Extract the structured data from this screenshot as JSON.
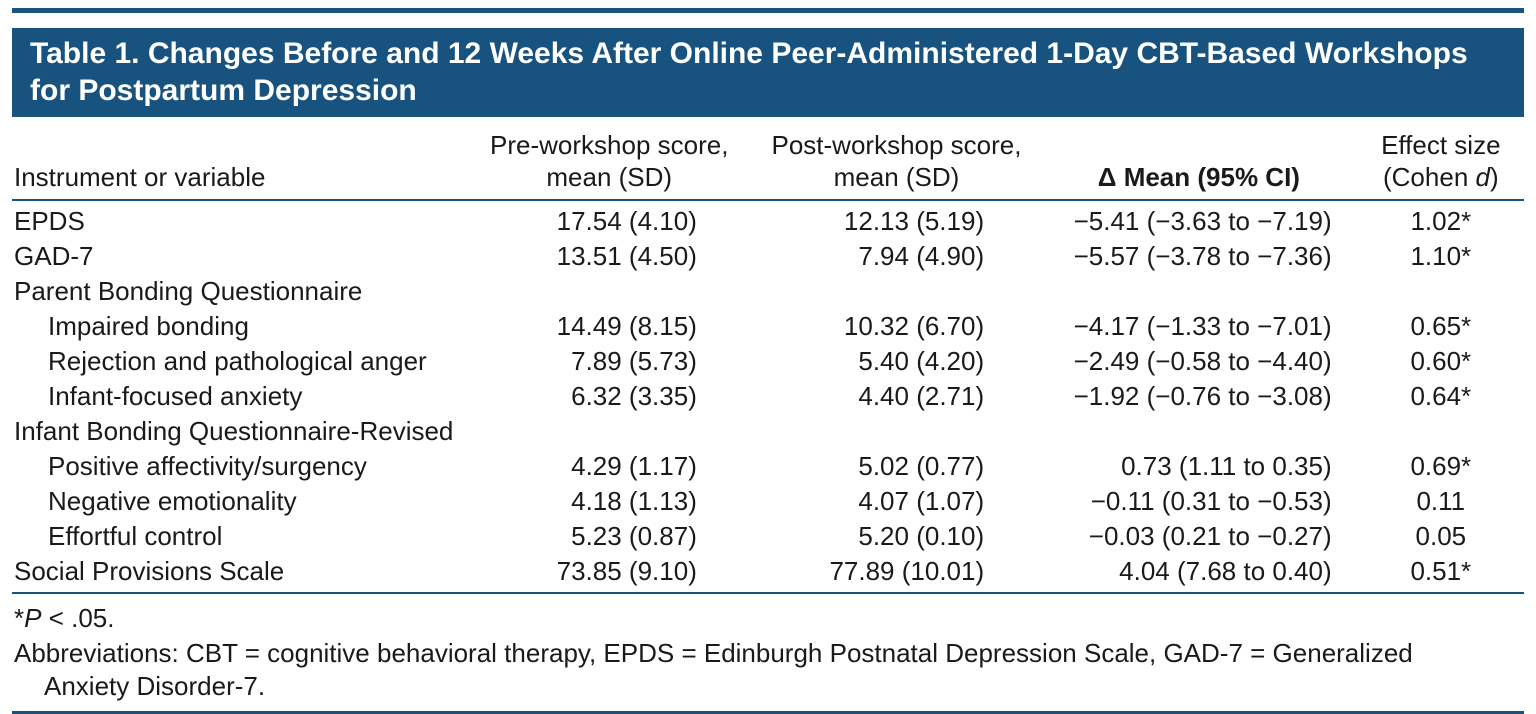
{
  "colors": {
    "accent": "#17537E",
    "text": "#1A1A1A",
    "title_text": "#FFFFFF"
  },
  "table": {
    "title_line1": "Table 1. Changes Before and 12 Weeks After Online Peer-Administered 1-Day CBT-Based Workshops",
    "title_line2": "for Postpartum Depression",
    "columns": {
      "instrument": "Instrument or variable",
      "pre_line1": "Pre-workshop score,",
      "pre_line2": "mean (SD)",
      "post_line1": "Post-workshop score,",
      "post_line2": "mean (SD)",
      "delta": "Δ Mean (95% CI)",
      "effect_line1": "Effect size",
      "effect_line2_pre": "(Cohen ",
      "effect_line2_d": "d",
      "effect_line2_post": ")"
    },
    "rows": [
      {
        "label": "EPDS",
        "indent": false,
        "group": false,
        "pre": "17.54 (4.10)",
        "post": "12.13 (5.19)",
        "delta": "−5.41 (−3.63 to −7.19)",
        "effect": "1.02*"
      },
      {
        "label": "GAD-7",
        "indent": false,
        "group": false,
        "pre": "13.51 (4.50)",
        "post": "7.94 (4.90)",
        "delta": "−5.57 (−3.78 to −7.36)",
        "effect": "1.10*"
      },
      {
        "label": "Parent Bonding Questionnaire",
        "indent": false,
        "group": true,
        "pre": "",
        "post": "",
        "delta": "",
        "effect": ""
      },
      {
        "label": "Impaired bonding",
        "indent": true,
        "group": false,
        "pre": "14.49 (8.15)",
        "post": "10.32 (6.70)",
        "delta": "−4.17 (−1.33 to −7.01)",
        "effect": "0.65*"
      },
      {
        "label": "Rejection and pathological anger",
        "indent": true,
        "group": false,
        "pre": "7.89 (5.73)",
        "post": "5.40 (4.20)",
        "delta": "−2.49 (−0.58 to −4.40)",
        "effect": "0.60*"
      },
      {
        "label": "Infant-focused anxiety",
        "indent": true,
        "group": false,
        "pre": "6.32 (3.35)",
        "post": "4.40 (2.71)",
        "delta": "−1.92 (−0.76 to −3.08)",
        "effect": "0.64*"
      },
      {
        "label": "Infant Bonding Questionnaire-Revised",
        "indent": false,
        "group": true,
        "pre": "",
        "post": "",
        "delta": "",
        "effect": ""
      },
      {
        "label": "Positive affectivity/surgency",
        "indent": true,
        "group": false,
        "pre": "4.29 (1.17)",
        "post": "5.02 (0.77)",
        "delta": "0.73 (1.11 to 0.35)",
        "effect": "0.69*"
      },
      {
        "label": "Negative emotionality",
        "indent": true,
        "group": false,
        "pre": "4.18 (1.13)",
        "post": "4.07 (1.07)",
        "delta": "−0.11 (0.31 to −0.53)",
        "effect": "0.11"
      },
      {
        "label": "Effortful control",
        "indent": true,
        "group": false,
        "pre": "5.23 (0.87)",
        "post": "5.20 (0.10)",
        "delta": "−0.03 (0.21 to −0.27)",
        "effect": "0.05"
      },
      {
        "label": "Social Provisions Scale",
        "indent": false,
        "group": false,
        "pre": "73.85 (9.10)",
        "post": "77.89 (10.01)",
        "delta": "4.04 (7.68 to 0.40)",
        "effect": "0.51*"
      }
    ]
  },
  "footnotes": {
    "sig_star": "*",
    "sig_p": "P",
    "sig_rest": " < .05.",
    "abbrev_line1": "Abbreviations: CBT = cognitive behavioral therapy, EPDS = Edinburgh Postnatal Depression Scale, GAD-7 = Generalized",
    "abbrev_line2": "Anxiety Disorder-7."
  }
}
